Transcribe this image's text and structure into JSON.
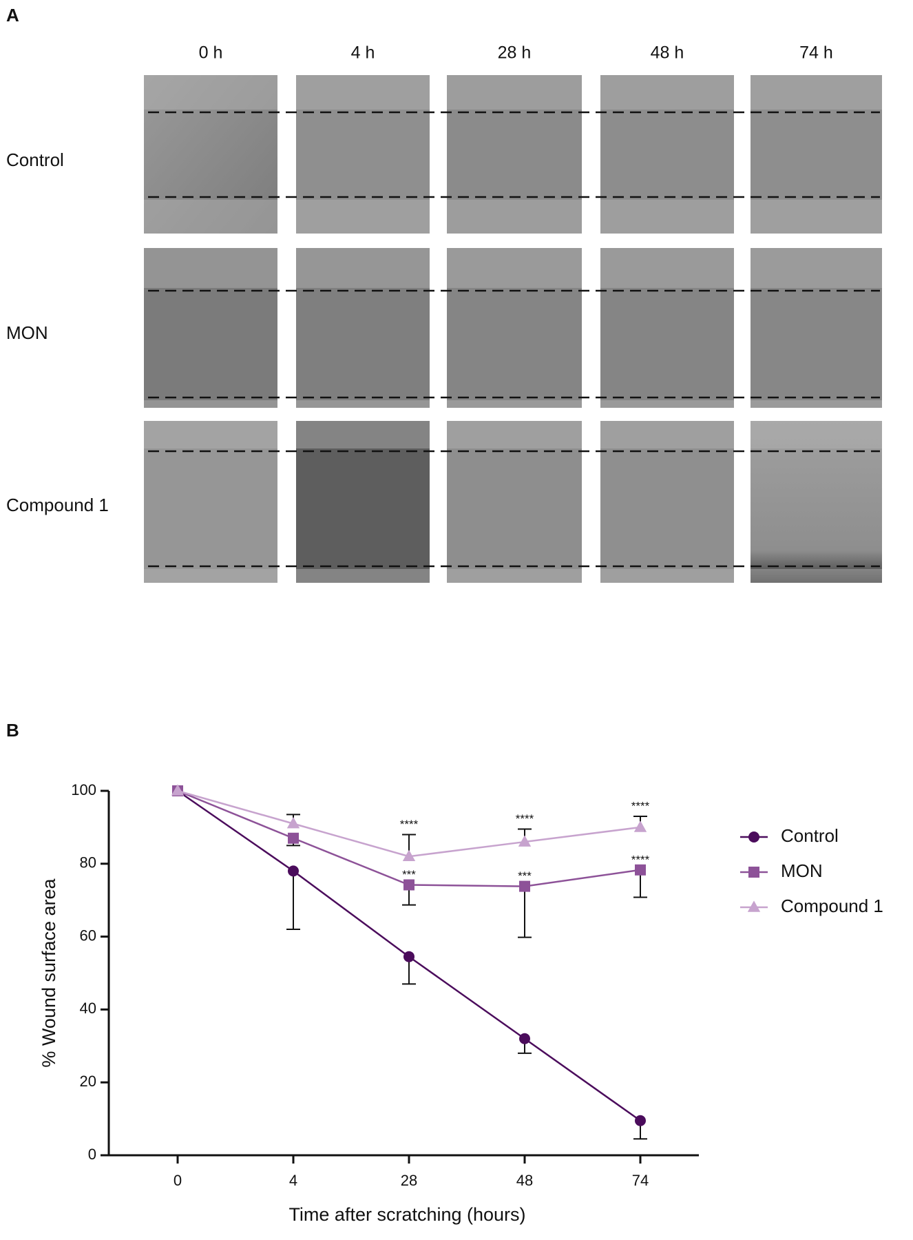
{
  "figure": {
    "panel_a_label": "A",
    "panel_b_label": "B",
    "columns": [
      "0 h",
      "4 h",
      "28 h",
      "48 h",
      "74 h"
    ],
    "rows": [
      "Control",
      "MON",
      "Compound 1"
    ]
  },
  "chart_data": {
    "type": "line",
    "x_label": "Time after scratching (hours)",
    "y_label": "% Wound surface area",
    "categories": [
      "0",
      "4",
      "28",
      "48",
      "74"
    ],
    "ylim": [
      0,
      100
    ],
    "yticks": [
      0,
      20,
      40,
      60,
      80,
      100
    ],
    "legend": "right",
    "series": [
      {
        "name": "Control",
        "color": "#4b0c5c",
        "marker": "circle",
        "error_direction": "down",
        "values": [
          100,
          78,
          54.5,
          32,
          9.5
        ],
        "errors": [
          0,
          16,
          7.5,
          4,
          5
        ],
        "annotations": [
          null,
          null,
          null,
          null,
          null
        ]
      },
      {
        "name": "MON",
        "color": "#8d5298",
        "marker": "square",
        "error_direction": "down",
        "values": [
          100,
          87,
          74.2,
          73.8,
          78.3
        ],
        "errors": [
          0,
          2,
          5.5,
          14,
          7.5
        ],
        "annotations": [
          null,
          null,
          "***",
          "***",
          "****"
        ]
      },
      {
        "name": "Compound 1",
        "color": "#c7a3ce",
        "marker": "triangle",
        "error_direction": "up",
        "values": [
          100,
          91,
          82,
          86,
          90
        ],
        "errors": [
          0,
          2.5,
          6,
          3.5,
          3
        ],
        "annotations": [
          null,
          null,
          "****",
          "****",
          "****"
        ]
      }
    ]
  }
}
